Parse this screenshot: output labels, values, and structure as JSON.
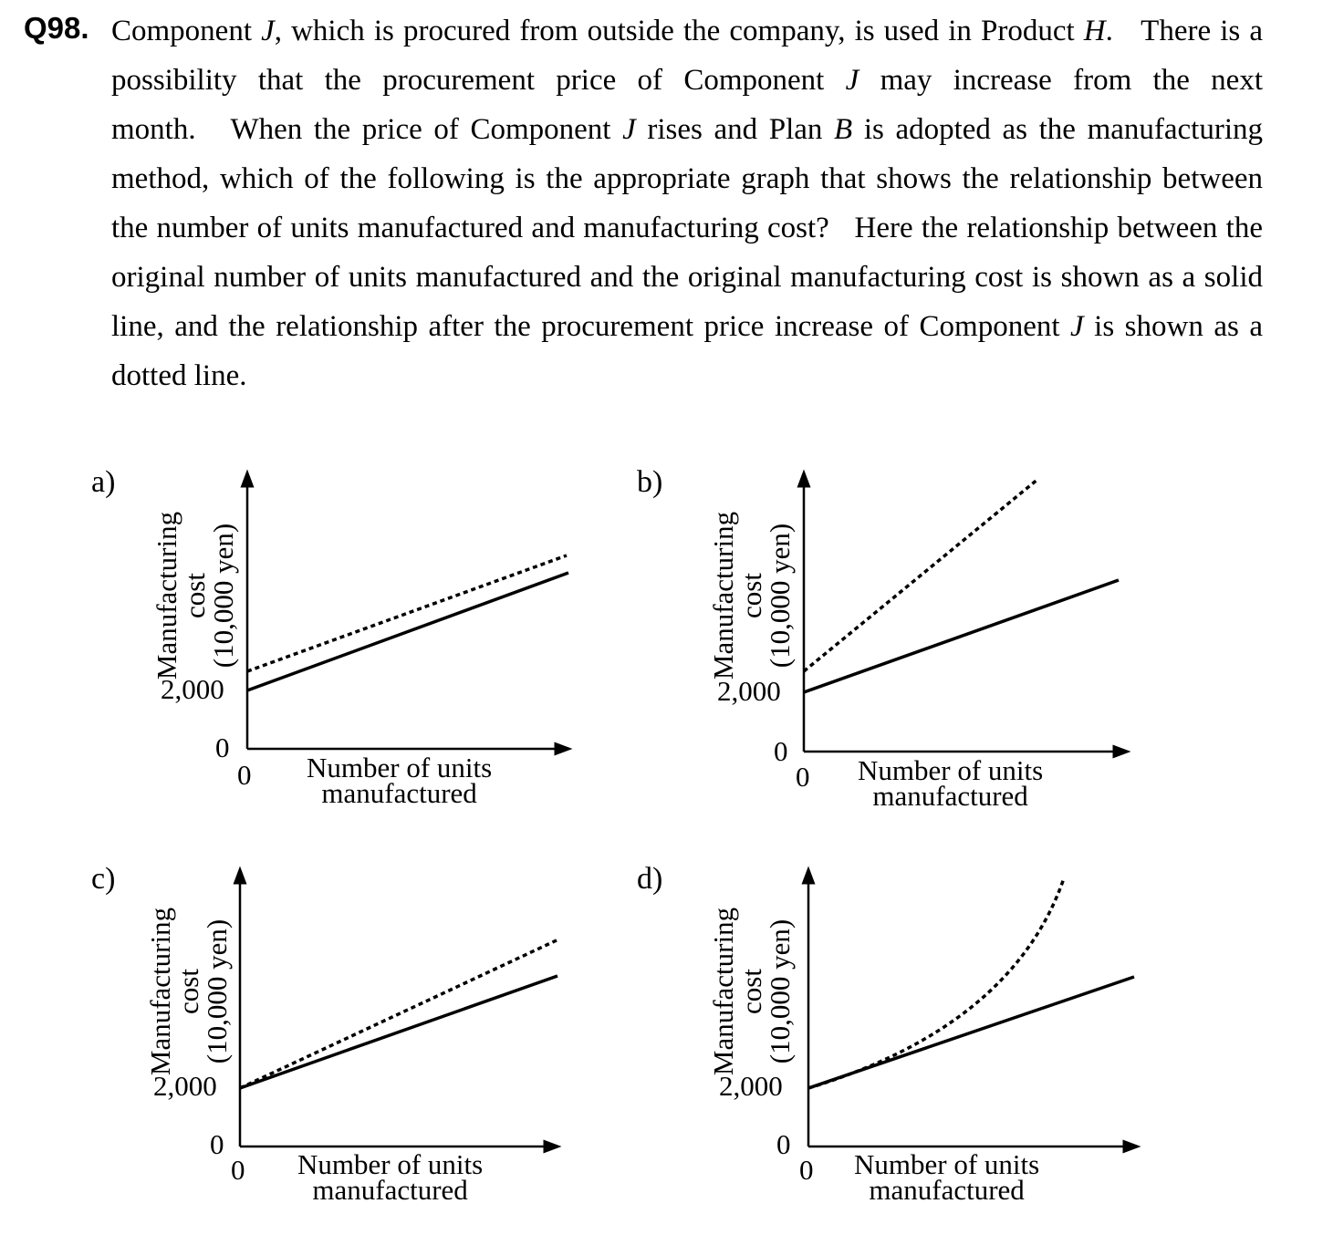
{
  "question": {
    "number": "Q98."
  },
  "graphs": [
    {
      "option": "a)",
      "ylabel_line1": "Manufacturing",
      "ylabel_line2": "cost",
      "ylabel_line3": "(10,000 yen)",
      "y_tick_2000": "2,000",
      "y_tick_0": "0",
      "x_tick_0": "0",
      "xlabel_line1": "Number of units",
      "xlabel_line2": "manufactured"
    },
    {
      "option": "b)",
      "ylabel_line1": "Manufacturing",
      "ylabel_line2": "cost",
      "ylabel_line3": "(10,000 yen)",
      "y_tick_2000": "2,000",
      "y_tick_0": "0",
      "x_tick_0": "0",
      "xlabel_line1": "Number of units",
      "xlabel_line2": "manufactured"
    },
    {
      "option": "c)",
      "ylabel_line1": "Manufacturing",
      "ylabel_line2": "cost",
      "ylabel_line3": "(10,000 yen)",
      "y_tick_2000": "2,000",
      "y_tick_0": "0",
      "x_tick_0": "0",
      "xlabel_line1": "Number of units",
      "xlabel_line2": "manufactured"
    },
    {
      "option": "d)",
      "ylabel_line1": "Manufacturing",
      "ylabel_line2": "cost",
      "ylabel_line3": "(10,000 yen)",
      "y_tick_2000": "2,000",
      "y_tick_0": "0",
      "x_tick_0": "0",
      "xlabel_line1": "Number of units",
      "xlabel_line2": "manufactured"
    }
  ]
}
